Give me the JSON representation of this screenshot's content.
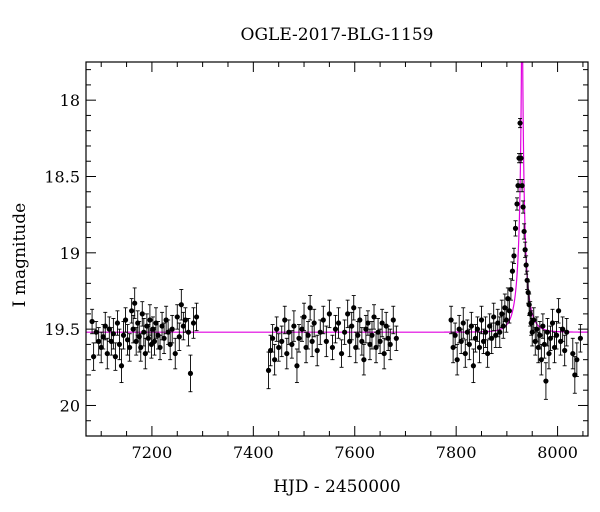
{
  "chart_data": {
    "type": "scatter",
    "title": "OGLE-2017-BLG-1159",
    "xlabel": "HJD - 2450000",
    "ylabel": "I magnitude",
    "xlim": [
      7070,
      8060
    ],
    "ylim": [
      20.2,
      17.75
    ],
    "y_inverted": true,
    "x_ticks": [
      7200,
      7400,
      7600,
      7800,
      8000
    ],
    "y_ticks": [
      18,
      18.5,
      19,
      19.5,
      20
    ],
    "x_tick_labels": [
      "7200",
      "7400",
      "7600",
      "7800",
      "8000"
    ],
    "y_tick_labels": [
      "18",
      "18.5",
      "19",
      "19.5",
      "20"
    ],
    "grid": false,
    "legend": "none",
    "colors": {
      "points": "#000000",
      "model": "#e000e0"
    },
    "model": {
      "baseline": 19.52,
      "t0": 7930,
      "u0": 0.05,
      "tE": 20,
      "fs": 0.35
    },
    "points": [
      [
        7082,
        19.45,
        0.08
      ],
      [
        7085,
        19.68,
        0.09
      ],
      [
        7090,
        19.52,
        0.07
      ],
      [
        7095,
        19.58,
        0.09
      ],
      [
        7100,
        19.62,
        0.1
      ],
      [
        7104,
        19.55,
        0.08
      ],
      [
        7108,
        19.48,
        0.09
      ],
      [
        7112,
        19.66,
        0.1
      ],
      [
        7116,
        19.5,
        0.08
      ],
      [
        7120,
        19.58,
        0.09
      ],
      [
        7124,
        19.53,
        0.1
      ],
      [
        7128,
        19.68,
        0.09
      ],
      [
        7132,
        19.46,
        0.08
      ],
      [
        7136,
        19.6,
        0.1
      ],
      [
        7140,
        19.74,
        0.11
      ],
      [
        7144,
        19.54,
        0.09
      ],
      [
        7148,
        19.44,
        0.08
      ],
      [
        7152,
        19.57,
        0.1
      ],
      [
        7156,
        19.62,
        0.09
      ],
      [
        7160,
        19.38,
        0.08
      ],
      [
        7163,
        19.5,
        0.09
      ],
      [
        7166,
        19.33,
        0.1
      ],
      [
        7169,
        19.58,
        0.09
      ],
      [
        7172,
        19.46,
        0.08
      ],
      [
        7175,
        19.55,
        0.1
      ],
      [
        7178,
        19.62,
        0.09
      ],
      [
        7181,
        19.4,
        0.08
      ],
      [
        7184,
        19.52,
        0.09
      ],
      [
        7187,
        19.66,
        0.1
      ],
      [
        7190,
        19.48,
        0.08
      ],
      [
        7193,
        19.56,
        0.09
      ],
      [
        7196,
        19.44,
        0.1
      ],
      [
        7199,
        19.6,
        0.09
      ],
      [
        7202,
        19.5,
        0.08
      ],
      [
        7205,
        19.58,
        0.09
      ],
      [
        7208,
        19.46,
        0.1
      ],
      [
        7212,
        19.54,
        0.09
      ],
      [
        7216,
        19.62,
        0.08
      ],
      [
        7220,
        19.48,
        0.09
      ],
      [
        7224,
        19.56,
        0.1
      ],
      [
        7228,
        19.44,
        0.09
      ],
      [
        7232,
        19.52,
        0.08
      ],
      [
        7236,
        19.6,
        0.1
      ],
      [
        7240,
        19.5,
        0.09
      ],
      [
        7246,
        19.66,
        0.1
      ],
      [
        7250,
        19.42,
        0.08
      ],
      [
        7254,
        19.55,
        0.09
      ],
      [
        7258,
        19.34,
        0.1
      ],
      [
        7262,
        19.48,
        0.09
      ],
      [
        7266,
        19.44,
        0.08
      ],
      [
        7272,
        19.52,
        0.09
      ],
      [
        7276,
        19.79,
        0.12
      ],
      [
        7282,
        19.46,
        0.1
      ],
      [
        7288,
        19.42,
        0.09
      ],
      [
        7430,
        19.77,
        0.12
      ],
      [
        7434,
        19.64,
        0.1
      ],
      [
        7438,
        19.56,
        0.09
      ],
      [
        7442,
        19.7,
        0.1
      ],
      [
        7446,
        19.5,
        0.08
      ],
      [
        7450,
        19.62,
        0.09
      ],
      [
        7456,
        19.58,
        0.1
      ],
      [
        7462,
        19.44,
        0.09
      ],
      [
        7466,
        19.66,
        0.1
      ],
      [
        7470,
        19.52,
        0.08
      ],
      [
        7476,
        19.6,
        0.09
      ],
      [
        7480,
        19.48,
        0.1
      ],
      [
        7486,
        19.74,
        0.11
      ],
      [
        7490,
        19.56,
        0.09
      ],
      [
        7496,
        19.5,
        0.08
      ],
      [
        7500,
        19.42,
        0.09
      ],
      [
        7504,
        19.62,
        0.1
      ],
      [
        7508,
        19.54,
        0.09
      ],
      [
        7512,
        19.36,
        0.08
      ],
      [
        7516,
        19.58,
        0.1
      ],
      [
        7520,
        19.46,
        0.09
      ],
      [
        7526,
        19.64,
        0.1
      ],
      [
        7532,
        19.52,
        0.08
      ],
      [
        7538,
        19.44,
        0.09
      ],
      [
        7544,
        19.58,
        0.1
      ],
      [
        7550,
        19.4,
        0.09
      ],
      [
        7556,
        19.62,
        0.08
      ],
      [
        7562,
        19.5,
        0.09
      ],
      [
        7568,
        19.46,
        0.1
      ],
      [
        7574,
        19.66,
        0.09
      ],
      [
        7580,
        19.52,
        0.08
      ],
      [
        7586,
        19.4,
        0.09
      ],
      [
        7590,
        19.58,
        0.1
      ],
      [
        7594,
        19.48,
        0.09
      ],
      [
        7598,
        19.36,
        0.08
      ],
      [
        7602,
        19.62,
        0.1
      ],
      [
        7606,
        19.54,
        0.09
      ],
      [
        7610,
        19.44,
        0.08
      ],
      [
        7614,
        19.58,
        0.09
      ],
      [
        7618,
        19.7,
        0.1
      ],
      [
        7622,
        19.5,
        0.09
      ],
      [
        7626,
        19.46,
        0.08
      ],
      [
        7630,
        19.6,
        0.1
      ],
      [
        7634,
        19.54,
        0.09
      ],
      [
        7638,
        19.42,
        0.08
      ],
      [
        7642,
        19.62,
        0.1
      ],
      [
        7646,
        19.52,
        0.09
      ],
      [
        7650,
        19.58,
        0.08
      ],
      [
        7654,
        19.46,
        0.09
      ],
      [
        7658,
        19.66,
        0.1
      ],
      [
        7662,
        19.48,
        0.09
      ],
      [
        7666,
        19.56,
        0.08
      ],
      [
        7670,
        19.6,
        0.1
      ],
      [
        7676,
        19.44,
        0.09
      ],
      [
        7682,
        19.56,
        0.08
      ],
      [
        7790,
        19.44,
        0.09
      ],
      [
        7794,
        19.62,
        0.1
      ],
      [
        7798,
        19.54,
        0.08
      ],
      [
        7802,
        19.7,
        0.1
      ],
      [
        7806,
        19.5,
        0.09
      ],
      [
        7810,
        19.58,
        0.08
      ],
      [
        7814,
        19.46,
        0.1
      ],
      [
        7818,
        19.66,
        0.09
      ],
      [
        7822,
        19.52,
        0.08
      ],
      [
        7826,
        19.6,
        0.1
      ],
      [
        7830,
        19.48,
        0.09
      ],
      [
        7834,
        19.74,
        0.11
      ],
      [
        7838,
        19.56,
        0.09
      ],
      [
        7842,
        19.5,
        0.08
      ],
      [
        7846,
        19.62,
        0.1
      ],
      [
        7850,
        19.44,
        0.09
      ],
      [
        7854,
        19.58,
        0.08
      ],
      [
        7858,
        19.52,
        0.1
      ],
      [
        7862,
        19.66,
        0.09
      ],
      [
        7866,
        19.48,
        0.08
      ],
      [
        7870,
        19.56,
        0.1
      ],
      [
        7874,
        19.42,
        0.09
      ],
      [
        7878,
        19.54,
        0.08
      ],
      [
        7882,
        19.46,
        0.09
      ],
      [
        7886,
        19.52,
        0.1
      ],
      [
        7890,
        19.4,
        0.09
      ],
      [
        7893,
        19.48,
        0.08
      ],
      [
        7896,
        19.36,
        0.09
      ],
      [
        7899,
        19.44,
        0.08
      ],
      [
        7902,
        19.3,
        0.07
      ],
      [
        7905,
        19.38,
        0.08
      ],
      [
        7908,
        19.24,
        0.07
      ],
      [
        7911,
        19.12,
        0.06
      ],
      [
        7914,
        19.02,
        0.05
      ],
      [
        7917,
        18.84,
        0.05
      ],
      [
        7920,
        18.68,
        0.04
      ],
      [
        7922,
        18.56,
        0.04
      ],
      [
        7924,
        18.38,
        0.03
      ],
      [
        7926,
        18.15,
        0.03
      ],
      [
        7928,
        18.38,
        0.03
      ],
      [
        7930,
        18.56,
        0.04
      ],
      [
        7932,
        18.7,
        0.04
      ],
      [
        7934,
        18.86,
        0.05
      ],
      [
        7936,
        18.98,
        0.05
      ],
      [
        7938,
        19.08,
        0.06
      ],
      [
        7940,
        19.18,
        0.06
      ],
      [
        7942,
        19.26,
        0.07
      ],
      [
        7944,
        19.34,
        0.07
      ],
      [
        7946,
        19.4,
        0.08
      ],
      [
        7948,
        19.46,
        0.08
      ],
      [
        7950,
        19.52,
        0.09
      ],
      [
        7953,
        19.44,
        0.08
      ],
      [
        7956,
        19.58,
        0.09
      ],
      [
        7959,
        19.5,
        0.08
      ],
      [
        7962,
        19.62,
        0.1
      ],
      [
        7965,
        19.54,
        0.09
      ],
      [
        7968,
        19.7,
        0.1
      ],
      [
        7971,
        19.48,
        0.08
      ],
      [
        7974,
        19.6,
        0.09
      ],
      [
        7977,
        19.84,
        0.12
      ],
      [
        7980,
        19.52,
        0.09
      ],
      [
        7983,
        19.66,
        0.1
      ],
      [
        7986,
        19.56,
        0.08
      ],
      [
        7990,
        19.46,
        0.09
      ],
      [
        7994,
        19.62,
        0.1
      ],
      [
        7998,
        19.54,
        0.09
      ],
      [
        8002,
        19.38,
        0.08
      ],
      [
        8006,
        19.58,
        0.09
      ],
      [
        8010,
        19.5,
        0.08
      ],
      [
        8014,
        19.64,
        0.1
      ],
      [
        8018,
        19.52,
        0.09
      ],
      [
        8030,
        19.66,
        0.1
      ],
      [
        8034,
        19.8,
        0.12
      ],
      [
        8038,
        19.7,
        0.11
      ],
      [
        8045,
        19.56,
        0.09
      ]
    ]
  }
}
